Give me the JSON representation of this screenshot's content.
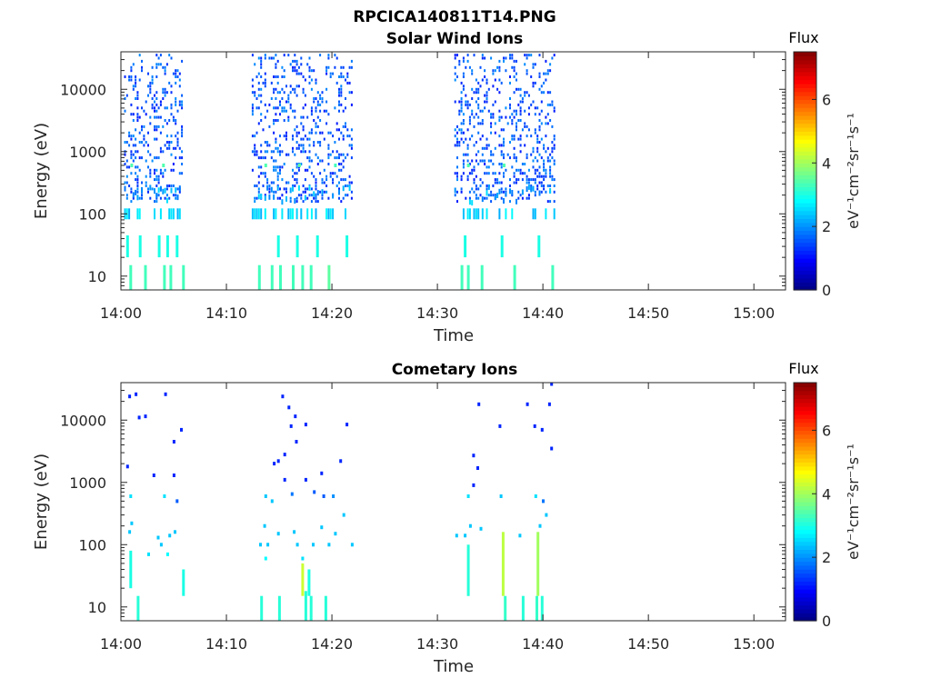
{
  "figure": {
    "title": "RPCICA140811T14.PNG"
  },
  "colormap": [
    "#00007f",
    "#0000ff",
    "#007fff",
    "#00ffff",
    "#7fff7f",
    "#ffff00",
    "#ff7f00",
    "#ff0000",
    "#7f0000"
  ],
  "chart_data": [
    {
      "type": "heatmap",
      "title": "Solar Wind Ions",
      "xlabel": "Time",
      "ylabel": "Energy (eV)",
      "x_tick_labels": [
        "14:00",
        "14:10",
        "14:20",
        "14:30",
        "14:40",
        "14:50",
        "15:00"
      ],
      "x_tick_minutes": [
        0,
        10,
        20,
        30,
        40,
        50,
        60
      ],
      "xlim_minutes": [
        0,
        63
      ],
      "y_scale": "log",
      "y_tick_labels": [
        "10",
        "100",
        "1000",
        "10000"
      ],
      "y_tick_values": [
        10,
        100,
        1000,
        10000
      ],
      "ylim": [
        6,
        40000
      ],
      "colorbar": {
        "title": "Flux",
        "label": "eV⁻¹cm⁻²sr⁻¹s⁻¹",
        "range": [
          0,
          7.5
        ],
        "tick_labels": [
          "0",
          "2",
          "4",
          "6"
        ],
        "tick_values": [
          0,
          2,
          4,
          6
        ]
      },
      "bursts_minutes": [
        [
          0.3,
          5.9
        ],
        [
          12.4,
          21.9
        ],
        [
          31.6,
          41.1
        ]
      ],
      "low_energy_lines": [
        {
          "t": 0.8,
          "e1": 6,
          "e2": 15,
          "v": 3.3
        },
        {
          "t": 2.2,
          "e1": 6,
          "e2": 15,
          "v": 3.3
        },
        {
          "t": 4.0,
          "e1": 6,
          "e2": 15,
          "v": 3.3
        },
        {
          "t": 4.6,
          "e1": 6,
          "e2": 15,
          "v": 3.3
        },
        {
          "t": 5.8,
          "e1": 6,
          "e2": 15,
          "v": 3.3
        },
        {
          "t": 13.0,
          "e1": 6,
          "e2": 15,
          "v": 3.3
        },
        {
          "t": 14.2,
          "e1": 6,
          "e2": 15,
          "v": 3.3
        },
        {
          "t": 15.0,
          "e1": 6,
          "e2": 15,
          "v": 3.3
        },
        {
          "t": 16.2,
          "e1": 6,
          "e2": 15,
          "v": 3.3
        },
        {
          "t": 17.1,
          "e1": 6,
          "e2": 15,
          "v": 3.3
        },
        {
          "t": 17.9,
          "e1": 6,
          "e2": 15,
          "v": 3.3
        },
        {
          "t": 19.6,
          "e1": 6,
          "e2": 15,
          "v": 3.5
        },
        {
          "t": 32.2,
          "e1": 6,
          "e2": 15,
          "v": 3.3
        },
        {
          "t": 32.8,
          "e1": 6,
          "e2": 15,
          "v": 3.3
        },
        {
          "t": 34.1,
          "e1": 6,
          "e2": 15,
          "v": 3.3
        },
        {
          "t": 37.2,
          "e1": 6,
          "e2": 15,
          "v": 3.3
        },
        {
          "t": 40.8,
          "e1": 6,
          "e2": 15,
          "v": 3.3
        },
        {
          "t": 0.5,
          "e1": 20,
          "e2": 45,
          "v": 3.0
        },
        {
          "t": 1.7,
          "e1": 20,
          "e2": 45,
          "v": 3.0
        },
        {
          "t": 3.5,
          "e1": 20,
          "e2": 45,
          "v": 3.0
        },
        {
          "t": 4.3,
          "e1": 20,
          "e2": 45,
          "v": 3.0
        },
        {
          "t": 5.2,
          "e1": 20,
          "e2": 45,
          "v": 3.0
        },
        {
          "t": 14.8,
          "e1": 20,
          "e2": 45,
          "v": 3.0
        },
        {
          "t": 16.6,
          "e1": 20,
          "e2": 45,
          "v": 3.0
        },
        {
          "t": 18.5,
          "e1": 20,
          "e2": 45,
          "v": 3.0
        },
        {
          "t": 21.3,
          "e1": 20,
          "e2": 45,
          "v": 3.0
        },
        {
          "t": 32.5,
          "e1": 20,
          "e2": 45,
          "v": 3.0
        },
        {
          "t": 36.0,
          "e1": 20,
          "e2": 45,
          "v": 3.0
        },
        {
          "t": 39.5,
          "e1": 20,
          "e2": 45,
          "v": 3.0
        }
      ],
      "highlight_points": [
        {
          "t": 0.9,
          "e": 600,
          "v": 3.4
        },
        {
          "t": 3.9,
          "e": 600,
          "v": 3.4
        },
        {
          "t": 13.6,
          "e": 600,
          "v": 3.4
        },
        {
          "t": 16.8,
          "e": 600,
          "v": 3.5
        },
        {
          "t": 20.2,
          "e": 600,
          "v": 3.3
        },
        {
          "t": 32.8,
          "e": 600,
          "v": 3.4
        },
        {
          "t": 36.2,
          "e": 600,
          "v": 3.4
        }
      ]
    },
    {
      "type": "heatmap",
      "title": "Cometary Ions",
      "xlabel": "Time",
      "ylabel": "Energy (eV)",
      "x_tick_labels": [
        "14:00",
        "14:10",
        "14:20",
        "14:30",
        "14:40",
        "14:50",
        "15:00"
      ],
      "x_tick_minutes": [
        0,
        10,
        20,
        30,
        40,
        50,
        60
      ],
      "xlim_minutes": [
        0,
        63
      ],
      "y_scale": "log",
      "y_tick_labels": [
        "10",
        "100",
        "1000",
        "10000"
      ],
      "y_tick_values": [
        10,
        100,
        1000,
        10000
      ],
      "ylim": [
        6,
        40000
      ],
      "colorbar": {
        "title": "Flux",
        "label": "eV⁻¹cm⁻²sr⁻¹s⁻¹",
        "range": [
          0,
          7.5
        ],
        "tick_labels": [
          "0",
          "2",
          "4",
          "6"
        ],
        "tick_values": [
          0,
          2,
          4,
          6
        ]
      },
      "points": [
        {
          "t": 0.7,
          "e": 24000,
          "v": 1.2
        },
        {
          "t": 1.3,
          "e": 26000,
          "v": 1.2
        },
        {
          "t": 4.1,
          "e": 26000,
          "v": 1.2
        },
        {
          "t": 1.6,
          "e": 11000,
          "v": 1.2
        },
        {
          "t": 2.2,
          "e": 11500,
          "v": 1.2
        },
        {
          "t": 4.9,
          "e": 4500,
          "v": 1.2
        },
        {
          "t": 5.6,
          "e": 7000,
          "v": 1.2
        },
        {
          "t": 0.5,
          "e": 1800,
          "v": 1.2
        },
        {
          "t": 3.0,
          "e": 1300,
          "v": 1.2
        },
        {
          "t": 4.9,
          "e": 1300,
          "v": 1.2
        },
        {
          "t": 0.8,
          "e": 600,
          "v": 2.6
        },
        {
          "t": 4.0,
          "e": 600,
          "v": 2.6
        },
        {
          "t": 5.2,
          "e": 500,
          "v": 1.6
        },
        {
          "t": 0.9,
          "e": 220,
          "v": 2.4
        },
        {
          "t": 0.7,
          "e": 160,
          "v": 2.4
        },
        {
          "t": 3.4,
          "e": 130,
          "v": 2.4
        },
        {
          "t": 4.5,
          "e": 140,
          "v": 2.4
        },
        {
          "t": 5.0,
          "e": 160,
          "v": 2.4
        },
        {
          "t": 3.7,
          "e": 100,
          "v": 2.4
        },
        {
          "t": 2.5,
          "e": 70,
          "v": 2.6
        },
        {
          "t": 4.3,
          "e": 70,
          "v": 2.8
        },
        {
          "t": 15.2,
          "e": 24000,
          "v": 1.2
        },
        {
          "t": 15.8,
          "e": 16000,
          "v": 1.2
        },
        {
          "t": 16.4,
          "e": 11500,
          "v": 1.2
        },
        {
          "t": 16.0,
          "e": 8000,
          "v": 1.2
        },
        {
          "t": 16.5,
          "e": 4500,
          "v": 1.2
        },
        {
          "t": 17.4,
          "e": 8500,
          "v": 1.2
        },
        {
          "t": 15.4,
          "e": 2800,
          "v": 1.2
        },
        {
          "t": 14.4,
          "e": 2000,
          "v": 1.2
        },
        {
          "t": 14.8,
          "e": 2200,
          "v": 1.2
        },
        {
          "t": 21.3,
          "e": 8500,
          "v": 1.2
        },
        {
          "t": 18.9,
          "e": 1400,
          "v": 1.2
        },
        {
          "t": 15.4,
          "e": 1100,
          "v": 1.2
        },
        {
          "t": 17.4,
          "e": 1100,
          "v": 1.2
        },
        {
          "t": 20.7,
          "e": 2200,
          "v": 1.2
        },
        {
          "t": 13.6,
          "e": 600,
          "v": 2.4
        },
        {
          "t": 14.2,
          "e": 500,
          "v": 2.4
        },
        {
          "t": 16.1,
          "e": 650,
          "v": 1.8
        },
        {
          "t": 18.2,
          "e": 700,
          "v": 1.6
        },
        {
          "t": 19.1,
          "e": 600,
          "v": 1.6
        },
        {
          "t": 20.0,
          "e": 600,
          "v": 2.0
        },
        {
          "t": 13.5,
          "e": 200,
          "v": 2.4
        },
        {
          "t": 14.8,
          "e": 150,
          "v": 2.4
        },
        {
          "t": 16.3,
          "e": 160,
          "v": 2.4
        },
        {
          "t": 18.9,
          "e": 190,
          "v": 2.4
        },
        {
          "t": 20.2,
          "e": 150,
          "v": 2.4
        },
        {
          "t": 21.0,
          "e": 300,
          "v": 2.4
        },
        {
          "t": 13.1,
          "e": 100,
          "v": 2.4
        },
        {
          "t": 13.8,
          "e": 100,
          "v": 2.4
        },
        {
          "t": 16.6,
          "e": 100,
          "v": 2.4
        },
        {
          "t": 18.1,
          "e": 100,
          "v": 2.4
        },
        {
          "t": 19.6,
          "e": 100,
          "v": 2.4
        },
        {
          "t": 21.8,
          "e": 100,
          "v": 2.4
        },
        {
          "t": 13.6,
          "e": 60,
          "v": 2.8
        },
        {
          "t": 17.1,
          "e": 60,
          "v": 2.6
        },
        {
          "t": 33.8,
          "e": 18000,
          "v": 1.2
        },
        {
          "t": 35.8,
          "e": 8000,
          "v": 1.2
        },
        {
          "t": 33.3,
          "e": 2700,
          "v": 1.2
        },
        {
          "t": 33.7,
          "e": 1700,
          "v": 1.2
        },
        {
          "t": 33.3,
          "e": 900,
          "v": 1.2
        },
        {
          "t": 32.8,
          "e": 600,
          "v": 2.6
        },
        {
          "t": 35.9,
          "e": 600,
          "v": 2.4
        },
        {
          "t": 39.2,
          "e": 600,
          "v": 2.6
        },
        {
          "t": 39.9,
          "e": 500,
          "v": 1.8
        },
        {
          "t": 38.4,
          "e": 18000,
          "v": 1.2
        },
        {
          "t": 39.1,
          "e": 8000,
          "v": 1.2
        },
        {
          "t": 39.8,
          "e": 7000,
          "v": 1.2
        },
        {
          "t": 40.5,
          "e": 18000,
          "v": 1.2
        },
        {
          "t": 40.7,
          "e": 38000,
          "v": 1.2
        },
        {
          "t": 40.7,
          "e": 3500,
          "v": 1.2
        },
        {
          "t": 40.2,
          "e": 300,
          "v": 2.4
        },
        {
          "t": 33.0,
          "e": 200,
          "v": 2.4
        },
        {
          "t": 34.0,
          "e": 180,
          "v": 2.4
        },
        {
          "t": 32.5,
          "e": 140,
          "v": 2.4
        },
        {
          "t": 37.7,
          "e": 140,
          "v": 2.4
        },
        {
          "t": 39.6,
          "e": 200,
          "v": 2.4
        },
        {
          "t": 31.7,
          "e": 140,
          "v": 2.4
        }
      ],
      "lines": [
        {
          "t": 1.5,
          "e1": 6,
          "e2": 15,
          "v": 3.1
        },
        {
          "t": 0.8,
          "e1": 20,
          "e2": 80,
          "v": 3.0
        },
        {
          "t": 5.8,
          "e1": 15,
          "e2": 40,
          "v": 3.0
        },
        {
          "t": 13.2,
          "e1": 6,
          "e2": 15,
          "v": 3.1
        },
        {
          "t": 14.9,
          "e1": 6,
          "e2": 15,
          "v": 3.1
        },
        {
          "t": 17.4,
          "e1": 6,
          "e2": 18,
          "v": 3.1
        },
        {
          "t": 17.9,
          "e1": 6,
          "e2": 15,
          "v": 3.1
        },
        {
          "t": 19.3,
          "e1": 6,
          "e2": 15,
          "v": 3.1
        },
        {
          "t": 17.1,
          "e1": 15,
          "e2": 50,
          "v": 4.3
        },
        {
          "t": 17.7,
          "e1": 15,
          "e2": 40,
          "v": 3.0
        },
        {
          "t": 32.8,
          "e1": 15,
          "e2": 100,
          "v": 3.1
        },
        {
          "t": 36.3,
          "e1": 6,
          "e2": 15,
          "v": 3.2
        },
        {
          "t": 38.0,
          "e1": 6,
          "e2": 15,
          "v": 3.1
        },
        {
          "t": 39.3,
          "e1": 6,
          "e2": 15,
          "v": 3.2
        },
        {
          "t": 39.8,
          "e1": 6,
          "e2": 15,
          "v": 3.1
        },
        {
          "t": 36.1,
          "e1": 15,
          "e2": 160,
          "v": 4.2
        },
        {
          "t": 39.4,
          "e1": 15,
          "e2": 160,
          "v": 4.0
        }
      ]
    }
  ]
}
